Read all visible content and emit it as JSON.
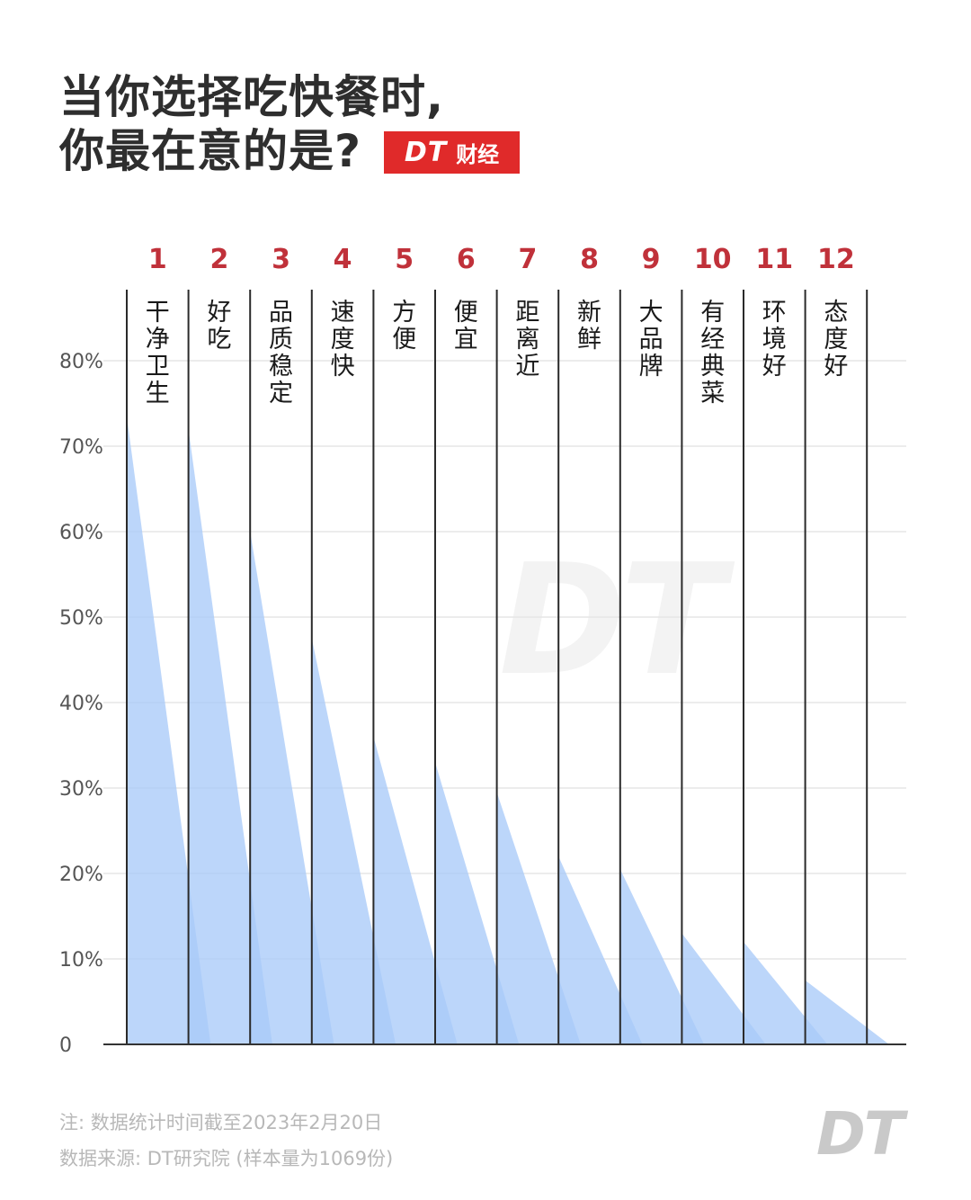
{
  "title": {
    "line1": "当你选择吃快餐时,",
    "line2": "你最在意的是?"
  },
  "brand": {
    "logo": "DT",
    "name": "财经",
    "color": "#e02a2a"
  },
  "watermark": "DT",
  "footer": {
    "note": "注: 数据统计时间截至2023年2月20日",
    "source": "数据来源: DT研究院 (样本量为1069份)",
    "logo": "DT"
  },
  "colors": {
    "fill": "#a9cbf8",
    "rank": "#c0313a",
    "grid": "#e6e6e6",
    "separator": "#2a2a2a"
  },
  "chart_data": {
    "type": "area",
    "title": "当你选择吃快餐时,你最在意的是?",
    "xlabel": "",
    "ylabel": "",
    "ylim": [
      0,
      80
    ],
    "yticks": [
      "0",
      "10%",
      "20%",
      "30%",
      "40%",
      "50%",
      "60%",
      "70%",
      "80%"
    ],
    "grid": true,
    "legend": null,
    "ranks": [
      "1",
      "2",
      "3",
      "4",
      "5",
      "6",
      "7",
      "8",
      "9",
      "10",
      "11",
      "12"
    ],
    "categories": [
      "干净卫生",
      "好吃",
      "品质稳定",
      "速度快",
      "方便",
      "便宜",
      "距离近",
      "新鲜",
      "大品牌",
      "有经典菜",
      "环境好",
      "态度好"
    ],
    "values": [
      73.5,
      72,
      60,
      47.5,
      36,
      33,
      29.5,
      22,
      20.5,
      13,
      12,
      7.5
    ],
    "unit": "%"
  }
}
